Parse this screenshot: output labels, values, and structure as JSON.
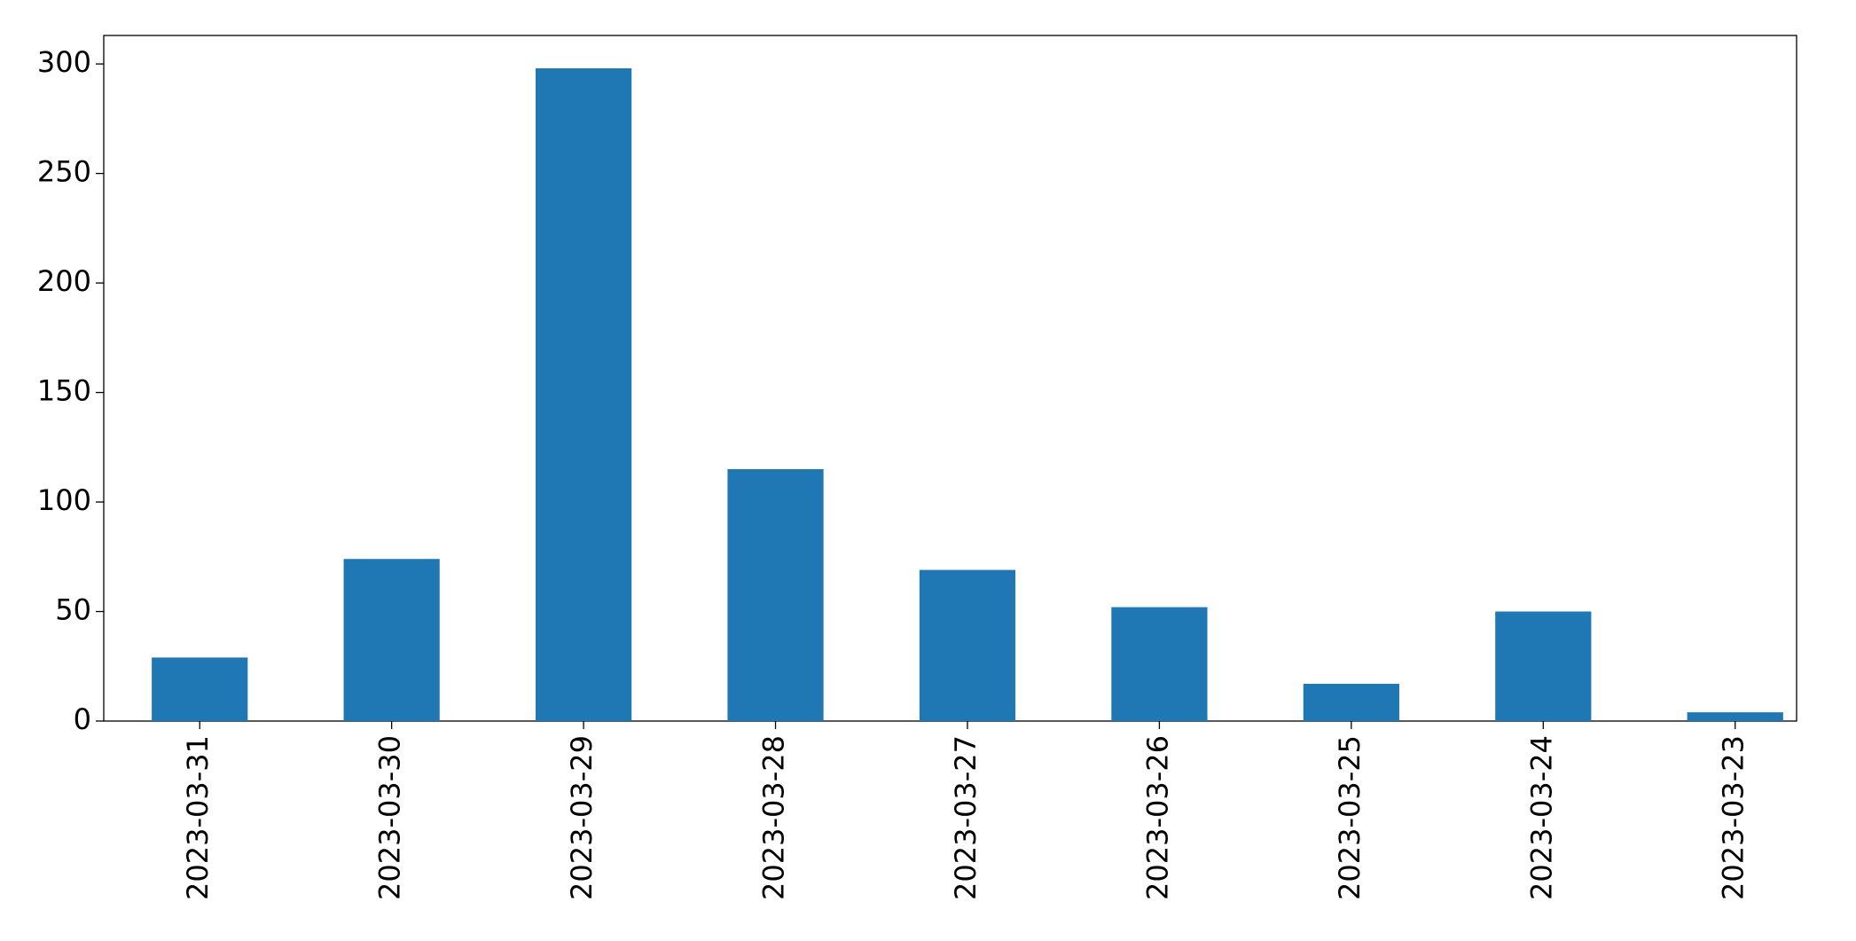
{
  "chart_data": {
    "type": "bar",
    "categories": [
      "2023-03-31",
      "2023-03-30",
      "2023-03-29",
      "2023-03-28",
      "2023-03-27",
      "2023-03-26",
      "2023-03-25",
      "2023-03-24",
      "2023-03-23"
    ],
    "values": [
      29,
      74,
      298,
      115,
      69,
      52,
      17,
      50,
      4
    ],
    "color": "#1f77b4",
    "ylim": [
      0,
      313
    ],
    "yticks": [
      0,
      50,
      100,
      150,
      200,
      250,
      300
    ],
    "grid": false
  }
}
